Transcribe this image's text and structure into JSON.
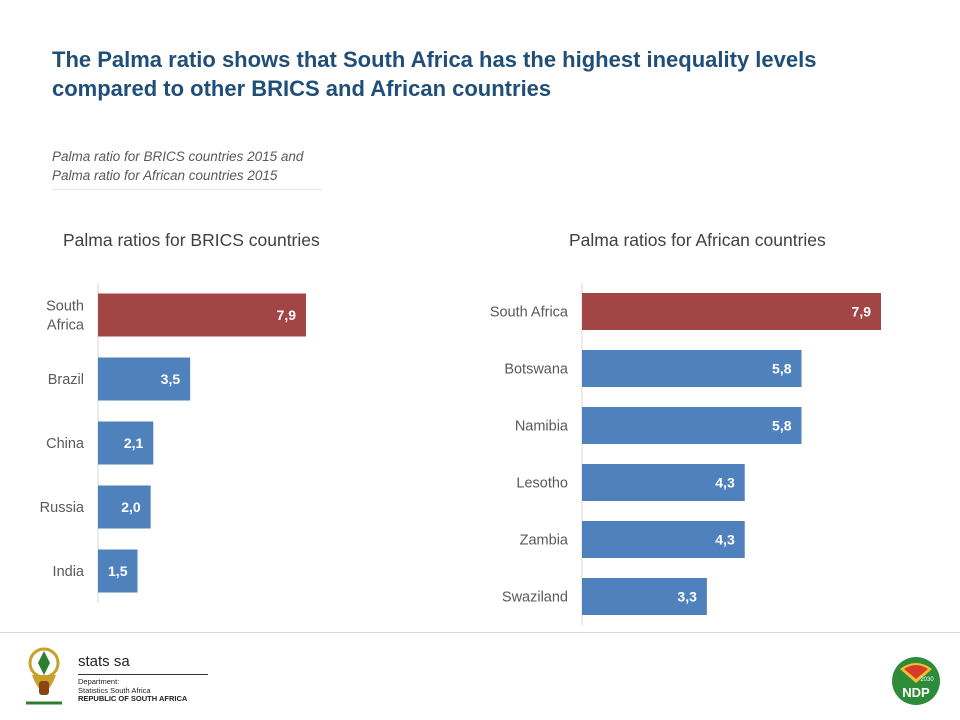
{
  "title_line1": "The Palma ratio shows that South Africa has the highest inequality levels",
  "title_line2": "compared to other BRICS and African countries",
  "subtitle": {
    "line1": "Palma ratio for BRICS countries 2015 and",
    "line2": "Palma ratio for African countries 2015"
  },
  "footer": {
    "org": "stats sa",
    "dept_line1": "Department:",
    "dept_line2": "Statistics South Africa",
    "dept_line3": "REPUBLIC OF SOUTH AFRICA",
    "ndp_label": "NDP",
    "ndp_year": "2030"
  },
  "colors": {
    "highlight": "#A14645",
    "bar": "#4F81BD",
    "title": "#1F4E79"
  },
  "chart_data": [
    {
      "type": "bar",
      "orientation": "horizontal",
      "title": "Palma ratios for BRICS countries",
      "categories": [
        [
          "South",
          "Africa"
        ],
        [
          "Brazil"
        ],
        [
          "China"
        ],
        [
          "Russia"
        ],
        [
          "India"
        ]
      ],
      "values": [
        7.9,
        3.5,
        2.1,
        2.0,
        1.5
      ],
      "value_labels": [
        "7,9",
        "3,5",
        "2,1",
        "2,0",
        "1,5"
      ],
      "highlight_index": 0,
      "xlim": [
        0,
        7.9
      ]
    },
    {
      "type": "bar",
      "orientation": "horizontal",
      "title": "Palma ratios for African countries",
      "categories": [
        [
          "South Africa"
        ],
        [
          "Botswana"
        ],
        [
          "Namibia"
        ],
        [
          "Lesotho"
        ],
        [
          "Zambia"
        ],
        [
          "Swaziland"
        ]
      ],
      "values": [
        7.9,
        5.8,
        5.8,
        4.3,
        4.3,
        3.3
      ],
      "value_labels": [
        "7,9",
        "5,8",
        "5,8",
        "4,3",
        "4,3",
        "3,3"
      ],
      "highlight_index": 0,
      "xlim": [
        0,
        7.9
      ]
    }
  ]
}
